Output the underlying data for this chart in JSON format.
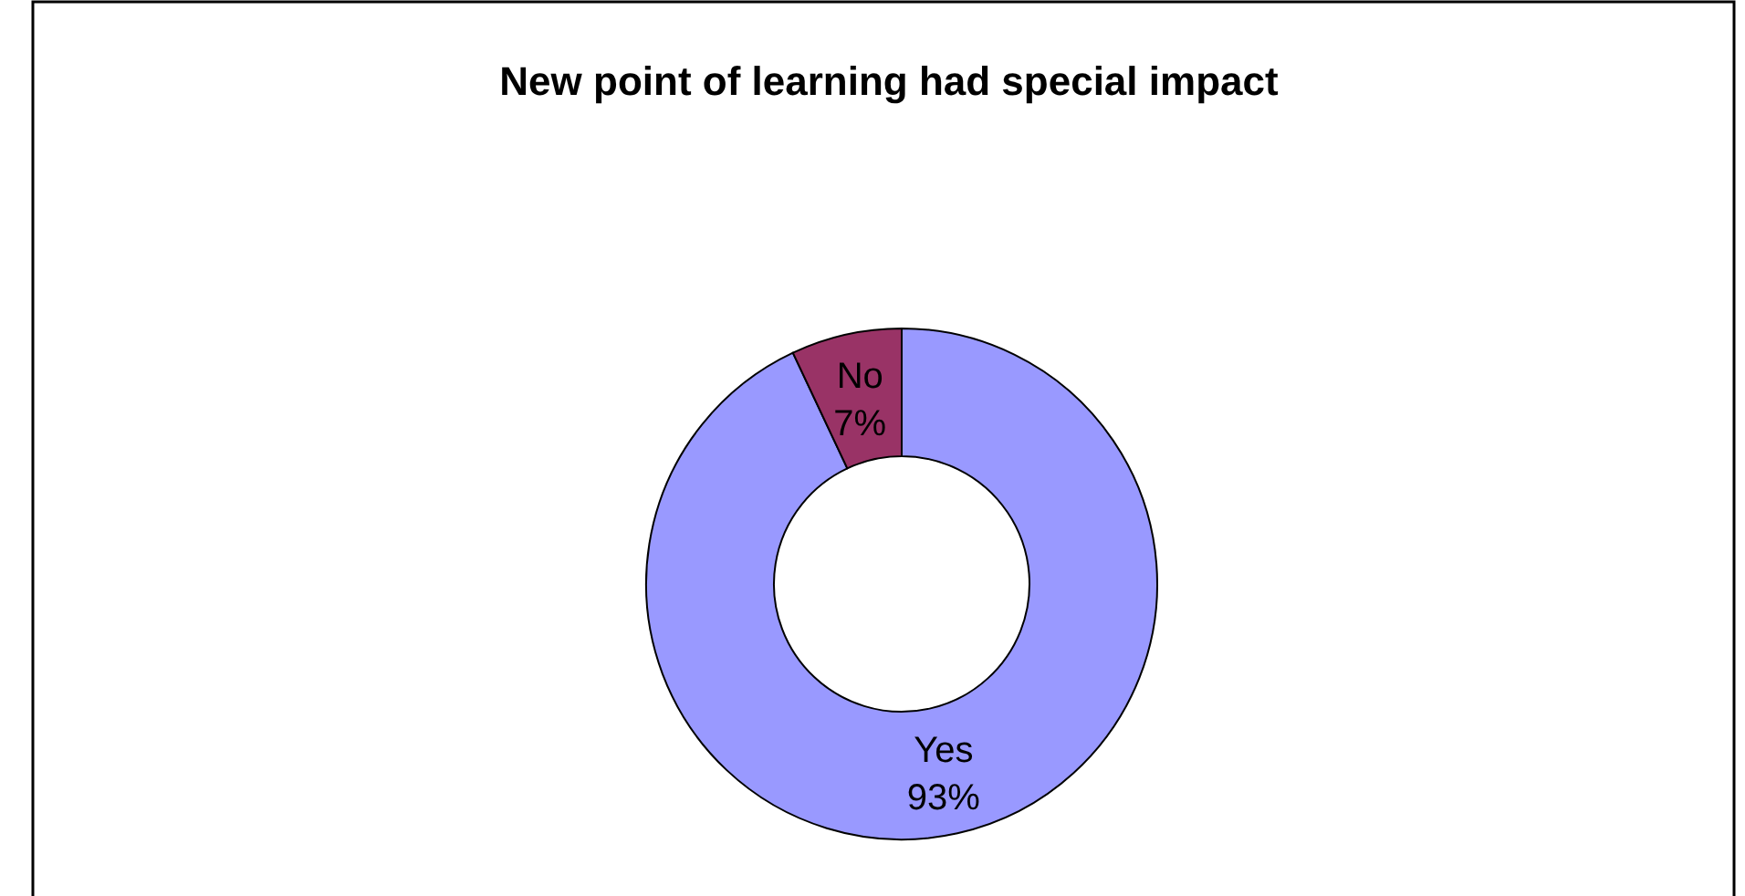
{
  "chart_data": {
    "type": "donut",
    "title": "New point of learning had special impact",
    "categories": [
      "Yes",
      "No"
    ],
    "values": [
      93,
      7
    ],
    "colors": [
      "#9999ff",
      "#993366"
    ],
    "value_labels": [
      "93%",
      "7%"
    ]
  }
}
